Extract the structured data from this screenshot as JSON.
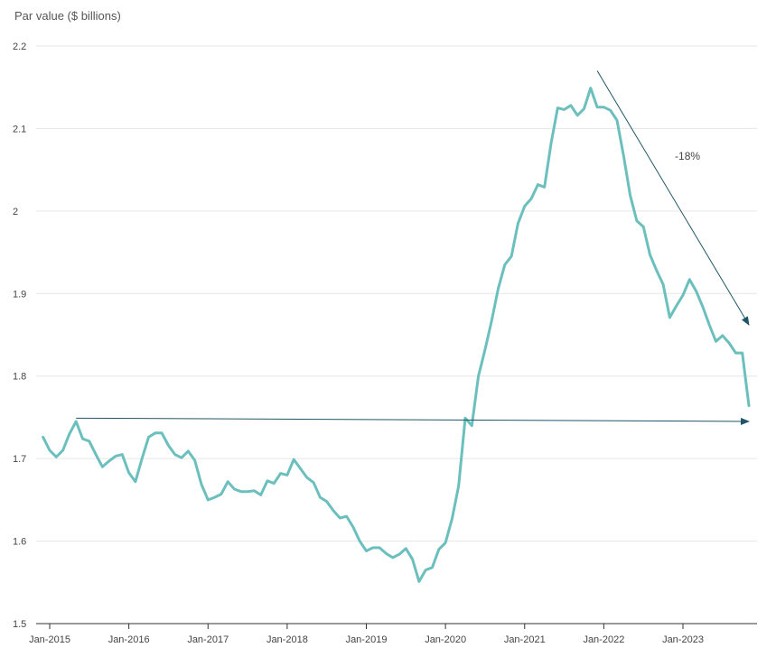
{
  "chart_data": {
    "type": "line",
    "title": "",
    "ylabel": "Par value ($ billions)",
    "xlabel": "",
    "ylim": [
      1.5,
      2.2
    ],
    "yticks": [
      {
        "value": 1.5,
        "label": "1.5"
      },
      {
        "value": 1.6,
        "label": "1.6"
      },
      {
        "value": 1.7,
        "label": "1.7"
      },
      {
        "value": 1.8,
        "label": "1.8"
      },
      {
        "value": 1.9,
        "label": "1.9"
      },
      {
        "value": 2.0,
        "label": "2"
      },
      {
        "value": 2.1,
        "label": "2.1"
      },
      {
        "value": 2.2,
        "label": "2.2"
      }
    ],
    "xticks": [
      {
        "date": "2015-01",
        "label": "Jan-2015"
      },
      {
        "date": "2016-01",
        "label": "Jan-2016"
      },
      {
        "date": "2017-01",
        "label": "Jan-2017"
      },
      {
        "date": "2018-01",
        "label": "Jan-2018"
      },
      {
        "date": "2019-01",
        "label": "Jan-2019"
      },
      {
        "date": "2020-01",
        "label": "Jan-2020"
      },
      {
        "date": "2021-01",
        "label": "Jan-2021"
      },
      {
        "date": "2022-01",
        "label": "Jan-2022"
      },
      {
        "date": "2023-01",
        "label": "Jan-2023"
      }
    ],
    "grid": true,
    "line_color": "#6bbfbd",
    "arrow_color": "#1f5566",
    "series": [
      {
        "points": [
          [
            "2014-12",
            1.726
          ],
          [
            "2015-01",
            1.71
          ],
          [
            "2015-02",
            1.702
          ],
          [
            "2015-03",
            1.71
          ],
          [
            "2015-04",
            1.73
          ],
          [
            "2015-05",
            1.745
          ],
          [
            "2015-06",
            1.724
          ],
          [
            "2015-07",
            1.721
          ],
          [
            "2015-08",
            1.705
          ],
          [
            "2015-09",
            1.69
          ],
          [
            "2015-10",
            1.697
          ],
          [
            "2015-11",
            1.703
          ],
          [
            "2015-12",
            1.705
          ],
          [
            "2016-01",
            1.683
          ],
          [
            "2016-02",
            1.672
          ],
          [
            "2016-03",
            1.7
          ],
          [
            "2016-04",
            1.726
          ],
          [
            "2016-05",
            1.731
          ],
          [
            "2016-06",
            1.731
          ],
          [
            "2016-07",
            1.716
          ],
          [
            "2016-08",
            1.705
          ],
          [
            "2016-09",
            1.701
          ],
          [
            "2016-10",
            1.709
          ],
          [
            "2016-11",
            1.698
          ],
          [
            "2016-12",
            1.669
          ],
          [
            "2017-01",
            1.65
          ],
          [
            "2017-02",
            1.653
          ],
          [
            "2017-03",
            1.657
          ],
          [
            "2017-04",
            1.672
          ],
          [
            "2017-05",
            1.663
          ],
          [
            "2017-06",
            1.66
          ],
          [
            "2017-07",
            1.66
          ],
          [
            "2017-08",
            1.661
          ],
          [
            "2017-09",
            1.656
          ],
          [
            "2017-10",
            1.673
          ],
          [
            "2017-11",
            1.67
          ],
          [
            "2017-12",
            1.682
          ],
          [
            "2018-01",
            1.68
          ],
          [
            "2018-02",
            1.699
          ],
          [
            "2018-03",
            1.688
          ],
          [
            "2018-04",
            1.677
          ],
          [
            "2018-05",
            1.671
          ],
          [
            "2018-06",
            1.653
          ],
          [
            "2018-07",
            1.648
          ],
          [
            "2018-08",
            1.637
          ],
          [
            "2018-09",
            1.628
          ],
          [
            "2018-10",
            1.63
          ],
          [
            "2018-11",
            1.617
          ],
          [
            "2018-12",
            1.6
          ],
          [
            "2019-01",
            1.588
          ],
          [
            "2019-02",
            1.592
          ],
          [
            "2019-03",
            1.592
          ],
          [
            "2019-04",
            1.585
          ],
          [
            "2019-05",
            1.58
          ],
          [
            "2019-06",
            1.584
          ],
          [
            "2019-07",
            1.591
          ],
          [
            "2019-08",
            1.578
          ],
          [
            "2019-09",
            1.551
          ],
          [
            "2019-10",
            1.565
          ],
          [
            "2019-11",
            1.568
          ],
          [
            "2019-12",
            1.59
          ],
          [
            "2020-01",
            1.598
          ],
          [
            "2020-02",
            1.627
          ],
          [
            "2020-03",
            1.667
          ],
          [
            "2020-04",
            1.749
          ],
          [
            "2020-05",
            1.74
          ],
          [
            "2020-06",
            1.8
          ],
          [
            "2020-07",
            1.832
          ],
          [
            "2020-08",
            1.867
          ],
          [
            "2020-09",
            1.906
          ],
          [
            "2020-10",
            1.935
          ],
          [
            "2020-11",
            1.945
          ],
          [
            "2020-12",
            1.985
          ],
          [
            "2021-01",
            2.006
          ],
          [
            "2021-02",
            2.015
          ],
          [
            "2021-03",
            2.032
          ],
          [
            "2021-04",
            2.029
          ],
          [
            "2021-05",
            2.082
          ],
          [
            "2021-06",
            2.125
          ],
          [
            "2021-07",
            2.123
          ],
          [
            "2021-08",
            2.128
          ],
          [
            "2021-09",
            2.116
          ],
          [
            "2021-10",
            2.124
          ],
          [
            "2021-11",
            2.149
          ],
          [
            "2021-12",
            2.126
          ],
          [
            "2022-01",
            2.126
          ],
          [
            "2022-02",
            2.122
          ],
          [
            "2022-03",
            2.11
          ],
          [
            "2022-04",
            2.067
          ],
          [
            "2022-05",
            2.019
          ],
          [
            "2022-06",
            1.988
          ],
          [
            "2022-07",
            1.981
          ],
          [
            "2022-08",
            1.947
          ],
          [
            "2022-09",
            1.928
          ],
          [
            "2022-10",
            1.911
          ],
          [
            "2022-11",
            1.871
          ],
          [
            "2022-12",
            1.885
          ],
          [
            "2023-01",
            1.898
          ],
          [
            "2023-02",
            1.917
          ],
          [
            "2023-03",
            1.903
          ],
          [
            "2023-04",
            1.884
          ],
          [
            "2023-05",
            1.862
          ],
          [
            "2023-06",
            1.842
          ],
          [
            "2023-07",
            1.849
          ],
          [
            "2023-08",
            1.84
          ],
          [
            "2023-09",
            1.828
          ],
          [
            "2023-10",
            1.828
          ],
          [
            "2023-11",
            1.764
          ]
        ]
      }
    ],
    "annotations": [
      {
        "label": "",
        "from": [
          "2015-05",
          1.749
        ],
        "to": [
          "2023-11",
          1.745
        ]
      },
      {
        "label": "-18%",
        "from": [
          "2021-12",
          2.17
        ],
        "to": [
          "2023-11",
          1.862
        ]
      }
    ]
  }
}
